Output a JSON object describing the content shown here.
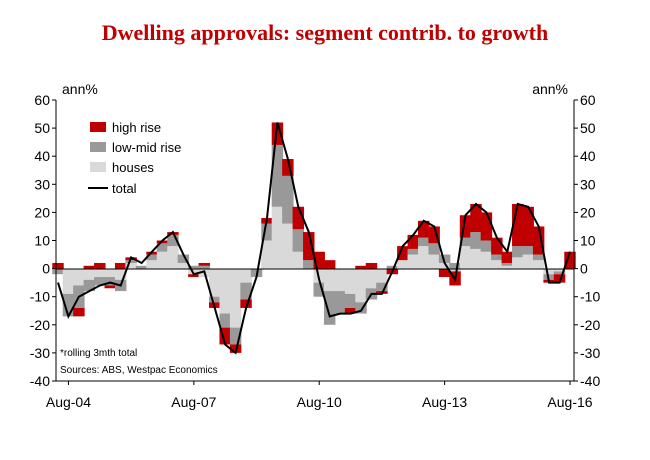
{
  "chart_data": {
    "type": "area",
    "title": "Dwelling approvals: segment contrib. to growth",
    "left_unit": "ann%",
    "right_unit": "ann%",
    "ylim": [
      -40,
      60
    ],
    "y_ticks": [
      60,
      50,
      40,
      30,
      20,
      10,
      0,
      -10,
      -20,
      -30,
      -40
    ],
    "x_ticks": [
      "Aug-04",
      "Aug-07",
      "Aug-10",
      "Aug-13",
      "Aug-16"
    ],
    "xlim": [
      "2004-05",
      "2016-08"
    ],
    "grid": false,
    "legend_position": "top-left",
    "note": "*rolling 3mth total",
    "source": "Sources: ABS, Westpac Economics",
    "colors": {
      "high_rise": "#c00000",
      "low_mid_rise": "#999999",
      "houses": "#d9d9d9",
      "total": "#000000",
      "title": "#c00000"
    },
    "x": [
      "2004-05",
      "2004-08",
      "2004-11",
      "2005-02",
      "2005-05",
      "2005-08",
      "2005-11",
      "2006-02",
      "2006-05",
      "2006-08",
      "2006-11",
      "2007-02",
      "2007-05",
      "2007-08",
      "2007-11",
      "2008-02",
      "2008-05",
      "2008-08",
      "2008-11",
      "2009-02",
      "2009-05",
      "2009-08",
      "2009-11",
      "2010-02",
      "2010-05",
      "2010-08",
      "2010-11",
      "2011-02",
      "2011-05",
      "2011-08",
      "2011-11",
      "2012-02",
      "2012-05",
      "2012-08",
      "2012-11",
      "2013-02",
      "2013-05",
      "2013-08",
      "2013-11",
      "2014-02",
      "2014-05",
      "2014-08",
      "2014-11",
      "2015-02",
      "2015-05",
      "2015-08",
      "2015-11",
      "2016-02",
      "2016-05",
      "2016-08"
    ],
    "series": [
      {
        "name": "high rise",
        "values": [
          2,
          0,
          -3,
          1,
          2,
          -1,
          2,
          1,
          0,
          1,
          1,
          1,
          0,
          -1,
          1,
          -2,
          -6,
          -3,
          -3,
          0,
          2,
          8,
          6,
          8,
          10,
          6,
          3,
          0,
          -2,
          1,
          2,
          -1,
          -2,
          5,
          5,
          6,
          6,
          -3,
          -5,
          8,
          10,
          10,
          6,
          4,
          15,
          14,
          10,
          -1,
          -3,
          6
        ]
      },
      {
        "name": "low-mid rise",
        "values": [
          -2,
          -8,
          -8,
          -4,
          -3,
          -3,
          -4,
          1,
          1,
          2,
          3,
          4,
          3,
          1,
          1,
          -2,
          -5,
          -6,
          -6,
          -3,
          6,
          22,
          17,
          8,
          3,
          -5,
          -12,
          -8,
          -5,
          -4,
          -4,
          -3,
          1,
          0,
          2,
          3,
          4,
          3,
          2,
          3,
          6,
          4,
          2,
          1,
          4,
          3,
          2,
          -2,
          -1,
          0
        ]
      },
      {
        "name": "houses",
        "values": [
          0,
          -9,
          -6,
          -4,
          -3,
          -3,
          -4,
          2,
          0,
          3,
          6,
          8,
          2,
          -2,
          -3,
          -10,
          -16,
          -21,
          -5,
          0,
          10,
          22,
          16,
          6,
          0,
          -5,
          -8,
          -8,
          -9,
          -12,
          -7,
          -5,
          0,
          3,
          5,
          8,
          5,
          2,
          -1,
          8,
          7,
          6,
          3,
          1,
          4,
          5,
          3,
          -2,
          -1,
          0
        ]
      }
    ],
    "total": {
      "name": "total",
      "values": [
        -5,
        -17,
        -10,
        -8,
        -6,
        -5,
        -6,
        4,
        2,
        6,
        10,
        13,
        5,
        -2,
        -1,
        -14,
        -27,
        -30,
        -14,
        -3,
        18,
        52,
        39,
        22,
        13,
        -4,
        -17,
        -16,
        -16,
        -15,
        -9,
        -9,
        -1,
        8,
        12,
        17,
        15,
        2,
        -4,
        19,
        23,
        20,
        11,
        6,
        23,
        22,
        15,
        -5,
        -5,
        6
      ]
    }
  }
}
